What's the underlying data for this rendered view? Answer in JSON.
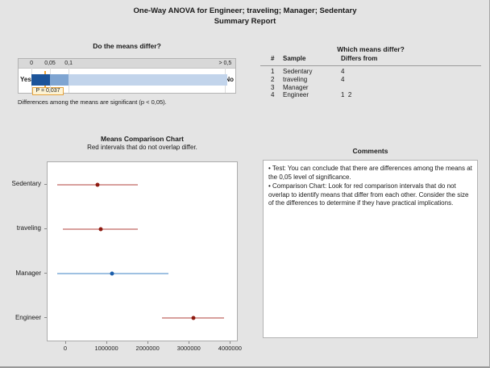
{
  "header": {
    "title_line1": "One-Way ANOVA for Engineer; traveling; Manager; Sedentary",
    "title_line2": "Summary Report"
  },
  "means_differ_panel": {
    "heading": "Do the means differ?",
    "gauge": {
      "tick_labels": [
        "0",
        "0,05",
        "0,1",
        "> 0,5"
      ],
      "tick_values": [
        0,
        0.05,
        0.1,
        0.5
      ],
      "tick_pcts": [
        6,
        14.5,
        23.1,
        95.3
      ],
      "bar_end_pct": 96.3,
      "yes_label": "Yes",
      "no_label": "No",
      "p_value": 0.037,
      "p_label": "P = 0,037",
      "colors": {
        "segment_significant": "#1c549a",
        "segment_marginal": "#7fa5d2",
        "segment_not_significant": "#c2d4eb",
        "marker": "#f0a434",
        "p_box_bg": "#fdf3d4",
        "p_box_border": "#e5a23d"
      }
    },
    "caption": "Differences among the means are significant (p < 0,05)."
  },
  "which_differ_panel": {
    "heading": "Which means differ?",
    "columns": {
      "num": "#",
      "sample": "Sample",
      "differs": "Differs from"
    },
    "rows": [
      {
        "num": "1",
        "sample": "Sedentary",
        "differs": "4"
      },
      {
        "num": "2",
        "sample": "traveling",
        "differs": "4"
      },
      {
        "num": "3",
        "sample": "Manager",
        "differs": ""
      },
      {
        "num": "4",
        "sample": "Engineer",
        "differs": "1  2"
      }
    ]
  },
  "chart_data": {
    "type": "interval",
    "title": "Means Comparison Chart",
    "subtitle": "Red intervals that do not overlap differ.",
    "categories": [
      "Sedentary",
      "traveling",
      "Manager",
      "Engineer"
    ],
    "series": [
      {
        "name": "Sedentary",
        "mean": 760000,
        "low": -210000,
        "high": 1740000,
        "differs": true
      },
      {
        "name": "traveling",
        "mean": 840000,
        "low": -70000,
        "high": 1740000,
        "differs": true
      },
      {
        "name": "Manager",
        "mean": 1120000,
        "low": -220000,
        "high": 2480000,
        "differs": false
      },
      {
        "name": "Engineer",
        "mean": 3090000,
        "low": 2320000,
        "high": 3840000,
        "differs": true
      }
    ],
    "xlim": [
      -450000,
      4150000
    ],
    "x_ticks": [
      0,
      1000000,
      2000000,
      3000000,
      4000000
    ],
    "x_tick_labels": [
      "0",
      "1000000",
      "2000000",
      "3000000",
      "4000000"
    ],
    "legend": "none",
    "grid": false,
    "colors": {
      "differ_line": "#b2423b",
      "differ_dot": "#8e1a10",
      "overlap_line": "#9fc1e2",
      "overlap_dot": "#1b5eab"
    }
  },
  "comments_panel": {
    "heading": "Comments",
    "bullets": [
      "Test: You can conclude that there are differences among the means at the 0,05 level of significance.",
      "Comparison Chart: Look for red comparison intervals that do not overlap to identify means that differ from each other. Consider the size of the differences to determine if they have practical implications."
    ]
  }
}
